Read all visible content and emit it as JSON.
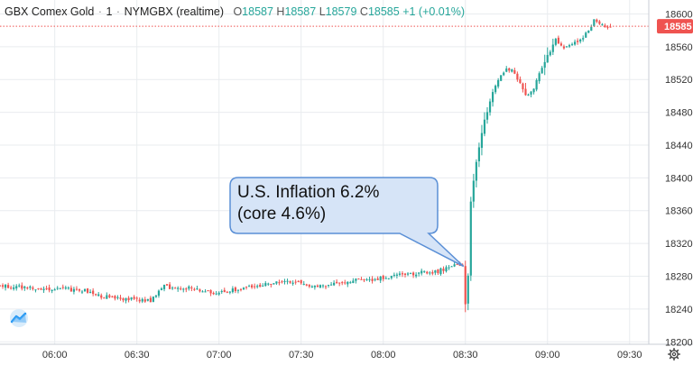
{
  "header": {
    "symbol": "GBX Comex Gold",
    "sep": "·",
    "interval": "1",
    "source": "NYMGBX (realtime)",
    "ohlc": {
      "o_label": "O",
      "o": "18587",
      "h_label": "H",
      "h": "18587",
      "l_label": "L",
      "l": "18579",
      "c_label": "C",
      "c": "18585",
      "change": "+1 (+0.01%)"
    }
  },
  "annotation": {
    "line1": "U.S. Inflation 6.2%",
    "line2": "(core 4.6%)"
  },
  "colors": {
    "up": "#26a69a",
    "down": "#ef5350",
    "grid": "#e9ecef",
    "last_price_line": "#ef5350",
    "callout_fill": "#d6e4f7",
    "callout_border": "#5a8fd6"
  },
  "icons": [
    "tradingview-logo-icon",
    "gear-icon"
  ],
  "chart_data": {
    "type": "candlestick",
    "title": "GBX Comex Gold · 1 · NYMGBX (realtime)",
    "y_ticks": [
      18200,
      18240,
      18280,
      18320,
      18360,
      18400,
      18440,
      18480,
      18520,
      18560,
      18600
    ],
    "ylim": [
      18197,
      18617
    ],
    "x_ticks": [
      {
        "label": "06:00",
        "t": "06:00"
      },
      {
        "label": "06:30",
        "t": "06:30"
      },
      {
        "label": "07:00",
        "t": "07:00"
      },
      {
        "label": "07:30",
        "t": "07:30"
      },
      {
        "label": "08:00",
        "t": "08:00"
      },
      {
        "label": "08:30",
        "t": "08:30"
      },
      {
        "label": "09:00",
        "t": "09:00"
      },
      {
        "label": "09:30",
        "t": "09:30"
      }
    ],
    "xlim": [
      "05:40",
      "09:37"
    ],
    "last_price": 18585,
    "last_price_label": "18585",
    "event": {
      "t": "08:30",
      "label": "U.S. Inflation 6.2% (core 4.6%)"
    },
    "grid": true,
    "price_path": [
      [
        "05:40",
        18268
      ],
      [
        "05:50",
        18266
      ],
      [
        "06:00",
        18265
      ],
      [
        "06:10",
        18263
      ],
      [
        "06:15",
        18257
      ],
      [
        "06:20",
        18254
      ],
      [
        "06:30",
        18251
      ],
      [
        "06:35",
        18250
      ],
      [
        "06:38",
        18262
      ],
      [
        "06:40",
        18268
      ],
      [
        "06:45",
        18265
      ],
      [
        "06:50",
        18266
      ],
      [
        "06:55",
        18262
      ],
      [
        "07:00",
        18260
      ],
      [
        "07:05",
        18263
      ],
      [
        "07:10",
        18266
      ],
      [
        "07:15",
        18268
      ],
      [
        "07:20",
        18272
      ],
      [
        "07:25",
        18274
      ],
      [
        "07:30",
        18272
      ],
      [
        "07:35",
        18268
      ],
      [
        "07:40",
        18270
      ],
      [
        "07:45",
        18273
      ],
      [
        "07:50",
        18275
      ],
      [
        "07:55",
        18276
      ],
      [
        "08:00",
        18278
      ],
      [
        "08:05",
        18281
      ],
      [
        "08:10",
        18283
      ],
      [
        "08:15",
        18285
      ],
      [
        "08:20",
        18286
      ],
      [
        "08:25",
        18292
      ],
      [
        "08:29",
        18293
      ],
      [
        "08:30",
        18245
      ],
      [
        "08:31",
        18282
      ],
      [
        "08:32",
        18370
      ],
      [
        "08:34",
        18420
      ],
      [
        "08:37",
        18470
      ],
      [
        "08:40",
        18505
      ],
      [
        "08:45",
        18535
      ],
      [
        "08:48",
        18528
      ],
      [
        "08:52",
        18500
      ],
      [
        "08:55",
        18510
      ],
      [
        "08:58",
        18535
      ],
      [
        "09:00",
        18550
      ],
      [
        "09:03",
        18568
      ],
      [
        "09:06",
        18560
      ],
      [
        "09:10",
        18565
      ],
      [
        "09:13",
        18572
      ],
      [
        "09:15",
        18580
      ],
      [
        "09:17",
        18592
      ],
      [
        "09:19",
        18588
      ],
      [
        "09:21",
        18582
      ],
      [
        "09:23",
        18585
      ]
    ]
  }
}
